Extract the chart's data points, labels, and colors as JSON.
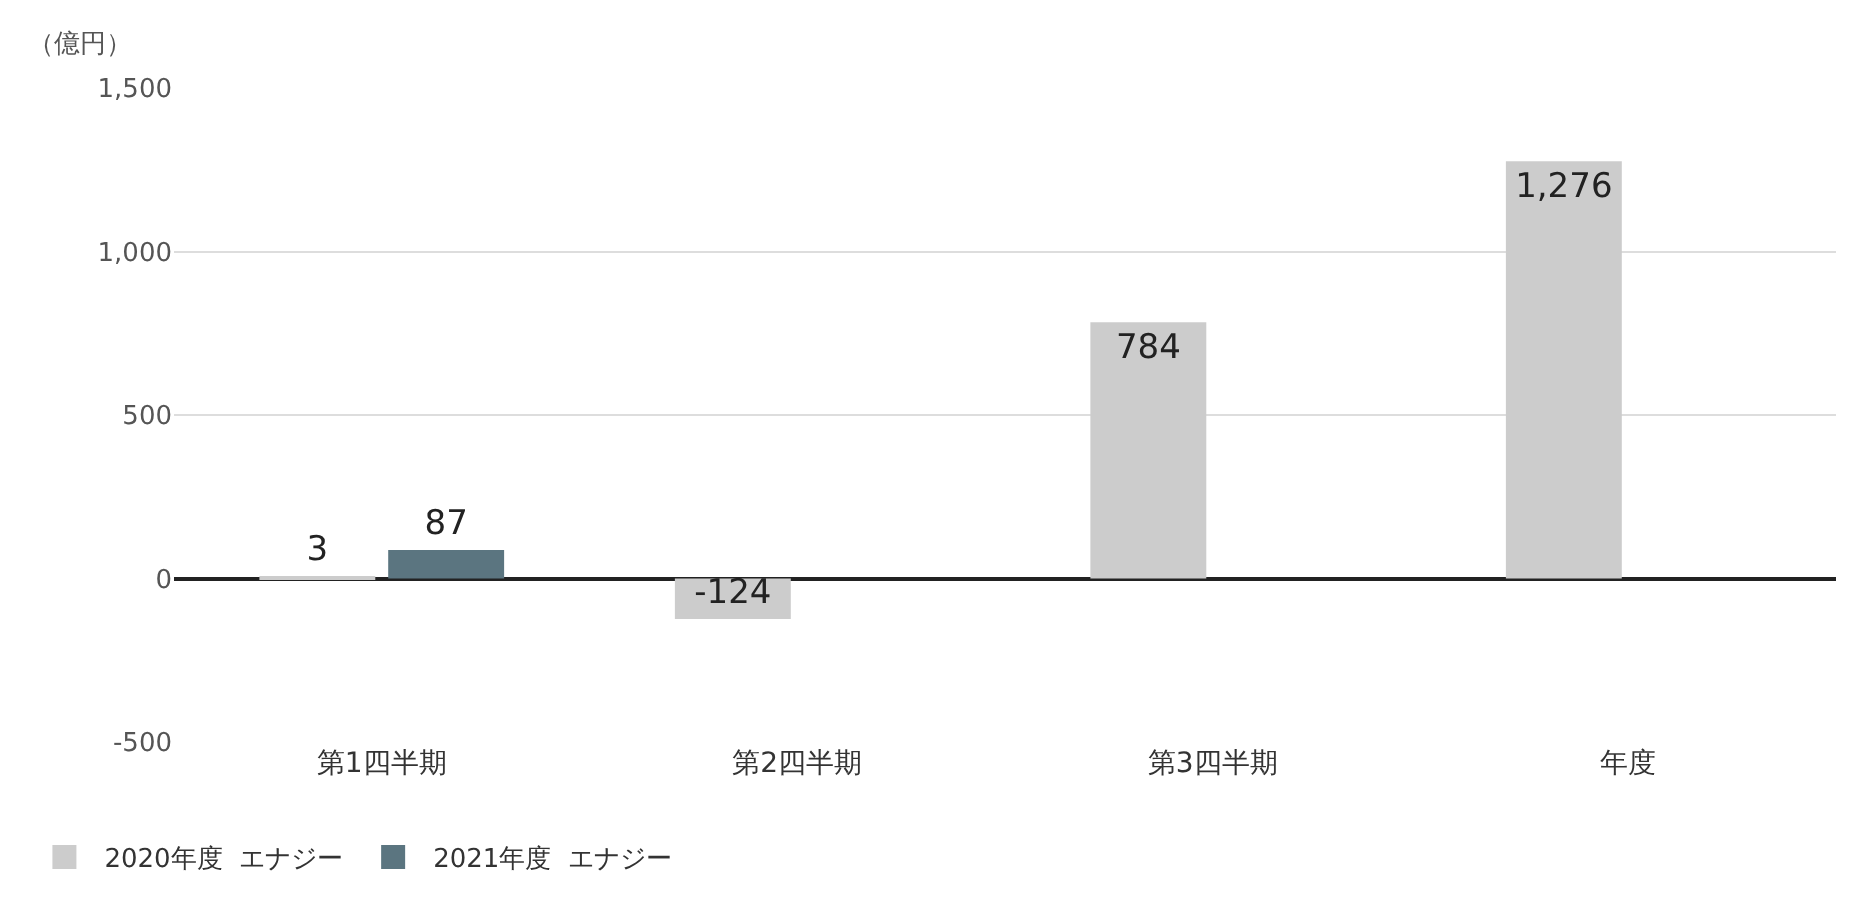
{
  "chart_data": {
    "type": "bar",
    "ylabel": "（億円）",
    "categories": [
      "第1四半期",
      "第2四半期",
      "第3四半期",
      "年度"
    ],
    "series": [
      {
        "name": "2020年度  エナジー",
        "color": "#cccccc",
        "values": [
          3,
          -124,
          784,
          1276
        ],
        "value_labels": [
          "3",
          "-124",
          "784",
          "1,276"
        ]
      },
      {
        "name": "2021年度  エナジー",
        "color": "#5b7580",
        "values": [
          87,
          null,
          null,
          null
        ],
        "value_labels": [
          "87",
          null,
          null,
          null
        ]
      }
    ],
    "ylim": [
      -500,
      1500
    ],
    "yticks": [
      -500,
      0,
      500,
      {
        "value": 1000,
        "label": "1,000"
      },
      {
        "value": 1500,
        "label": "1,500"
      }
    ],
    "grid": "y",
    "legend": "bottom left"
  }
}
